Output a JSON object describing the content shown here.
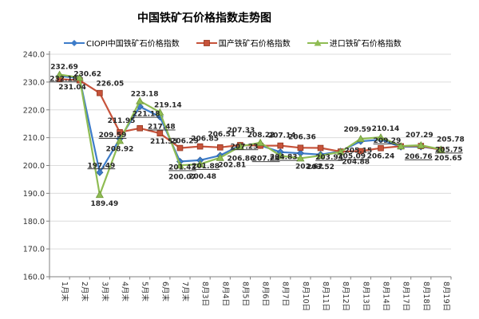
{
  "page": {
    "window_title": "中国铁矿石价格指数走势图"
  },
  "chart_data": {
    "type": "line",
    "title": "中国铁矿石价格指数走势图",
    "legend_position": "top",
    "grid": true,
    "categories": [
      "1月末",
      "2月末",
      "3月末",
      "4月末",
      "5月末",
      "6月末",
      "7月末",
      "8月3日",
      "8月4日",
      "8月5日",
      "8月6日",
      "8月7日",
      "8月10日",
      "8月11日",
      "8月12日",
      "8月13日",
      "8月14日",
      "8月17日",
      "8月18日",
      "8月19日"
    ],
    "y_axis": {
      "min": 160,
      "max": 240,
      "step": 10,
      "tick_labels": [
        "160.0",
        "170.0",
        "180.0",
        "190.0",
        "200.0",
        "210.0",
        "220.0",
        "230.0",
        "240.0"
      ]
    },
    "series": [
      {
        "name": "CIOPI中国铁矿石价格指数",
        "color": "#3D7CC9",
        "marker": "diamond",
        "labels_underlined": true,
        "values": [
          232.18,
          231.4,
          197.49,
          209.59,
          221.18,
          217.48,
          201.43,
          201.88,
          203.6,
          207.23,
          207.24,
          204.83,
          204.4,
          203.94,
          205.09,
          208.7,
          209.29,
          206.7,
          206.76,
          205.75
        ],
        "labels": [
          "232.18",
          null,
          "197.49",
          "209.59",
          "221.18",
          "217.48",
          "201.43",
          "201.88",
          null,
          "207.23",
          "207.24",
          "204.83",
          null,
          "203.94",
          "205.09",
          null,
          "209.29",
          null,
          "206.76",
          "205.75"
        ]
      },
      {
        "name": "国产铁矿石价格指数",
        "color": "#C7533B",
        "marker": "square",
        "labels_underlined": false,
        "values": [
          231.04,
          230.62,
          226.05,
          211.95,
          213.4,
          211.55,
          206.29,
          206.85,
          206.51,
          207.33,
          207.1,
          207.14,
          206.36,
          206.3,
          205.0,
          205.15,
          206.24,
          206.9,
          207.0,
          205.65
        ],
        "labels": [
          "231.04",
          "230.62",
          "226.05",
          "211.95",
          null,
          "211.55",
          "206.29",
          "206.85",
          "206.51",
          "207.33",
          null,
          "207.14",
          "206.36",
          null,
          null,
          "205.15",
          "206.24",
          null,
          null,
          "205.65"
        ]
      },
      {
        "name": "进口铁矿石价格指数",
        "color": "#8FBC53",
        "marker": "triangle",
        "labels_underlined": false,
        "values": [
          232.69,
          231.6,
          189.49,
          208.92,
          223.18,
          219.14,
          200.07,
          200.48,
          202.81,
          206.86,
          208.22,
          203.5,
          202.62,
          203.52,
          204.88,
          209.59,
          210.14,
          207.0,
          207.29,
          205.78
        ],
        "labels": [
          "232.69",
          null,
          "189.49",
          "208.92",
          "223.18",
          "219.14",
          "200.07",
          "200.48",
          "202.81",
          "206.86",
          "208.22",
          null,
          "202.62",
          "203.52",
          "204.88",
          "209.59",
          "210.14",
          null,
          "207.29",
          "205.78"
        ]
      }
    ]
  }
}
